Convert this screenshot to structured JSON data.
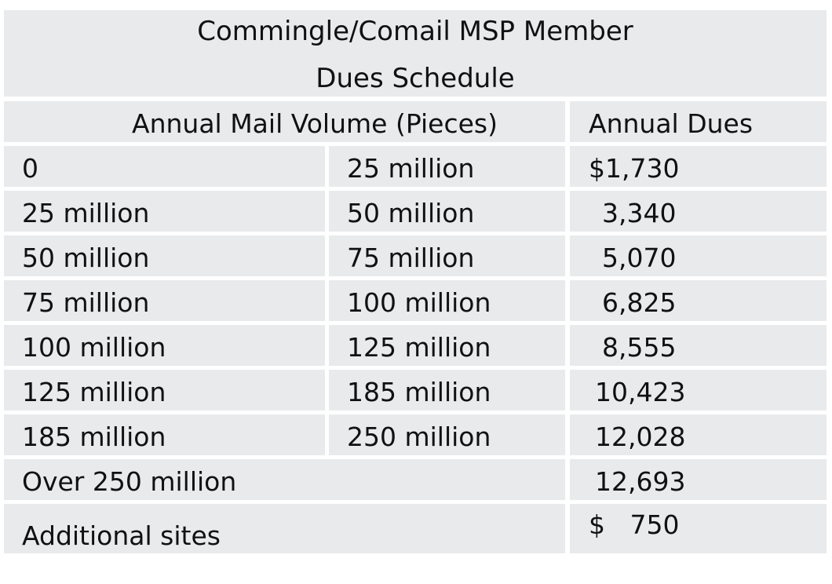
{
  "title": {
    "line1": "Commingle/Comail MSP Member",
    "line2": "Dues Schedule"
  },
  "header": {
    "volume": "Annual Mail Volume (Pieces)",
    "dues": "Annual Dues"
  },
  "rows": [
    {
      "from": "0",
      "to": "25 million",
      "dues": "$1,730"
    },
    {
      "from": "25 million",
      "to": "50 million",
      "dues": "3,340"
    },
    {
      "from": "50 million",
      "to": "75 million",
      "dues": "5,070"
    },
    {
      "from": "75 million",
      "to": "100 million",
      "dues": "6,825"
    },
    {
      "from": "100 million",
      "to": "125 million",
      "dues": "8,555"
    },
    {
      "from": "125 million",
      "to": "185 million",
      "dues": "10,423"
    },
    {
      "from": "185 million",
      "to": "250 million",
      "dues": "12,028"
    }
  ],
  "over": {
    "label": "Over 250 million",
    "dues": "12,693"
  },
  "additional": {
    "label": "Additional sites",
    "dues": "$   750"
  },
  "colors": {
    "cell_background": "#e9eaec",
    "grid_lines": "#ffffff",
    "text": "#111111"
  }
}
